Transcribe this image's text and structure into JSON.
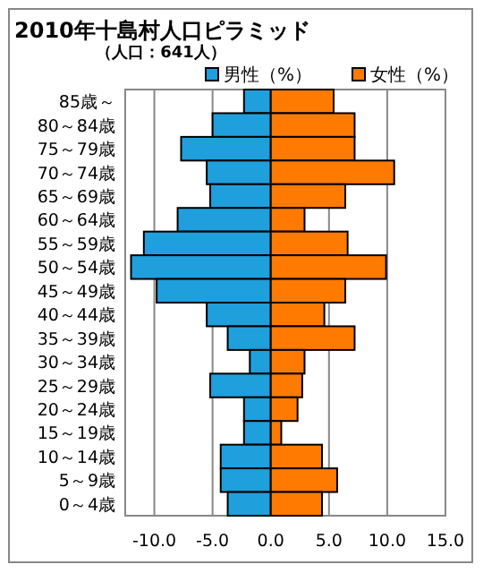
{
  "chart_data": {
    "type": "bar",
    "orientation": "horizontal",
    "title": "2010年十島村人口ピラミッド",
    "subtitle": "（人口：641人）",
    "categories": [
      "85歳～",
      "80～84歳",
      "75～79歳",
      "70～74歳",
      "65～69歳",
      "60～64歳",
      "55～59歳",
      "50～54歳",
      "45～49歳",
      "40～44歳",
      "35～39歳",
      "30～34歳",
      "25～29歳",
      "20～24歳",
      "15～19歳",
      "10～14歳",
      "5～9歳",
      "0～4歳"
    ],
    "series": [
      {
        "name": "男性（%）",
        "color": "#1f9fdc",
        "values": [
          -2.3,
          -5.0,
          -7.7,
          -5.5,
          -5.2,
          -8.0,
          -10.9,
          -12.0,
          -9.8,
          -5.5,
          -3.7,
          -1.8,
          -5.2,
          -2.3,
          -2.3,
          -4.3,
          -4.3,
          -3.7
        ]
      },
      {
        "name": "女性（%）",
        "color": "#ff7a00",
        "values": [
          5.4,
          7.2,
          7.2,
          10.6,
          6.4,
          2.9,
          6.6,
          9.9,
          6.4,
          4.6,
          7.2,
          2.9,
          2.7,
          2.3,
          0.9,
          4.4,
          5.7,
          4.4
        ]
      }
    ],
    "xlim": [
      -12.5,
      15
    ],
    "xticks": [
      {
        "value": -10,
        "label": "-10.0"
      },
      {
        "value": -5,
        "label": "-5.0"
      },
      {
        "value": 0,
        "label": "0.0"
      },
      {
        "value": 5,
        "label": "5.0"
      },
      {
        "value": 10,
        "label": "10.0"
      },
      {
        "value": 15,
        "label": "15.0"
      }
    ],
    "grid": "x",
    "legend": "top",
    "stacked": true
  }
}
